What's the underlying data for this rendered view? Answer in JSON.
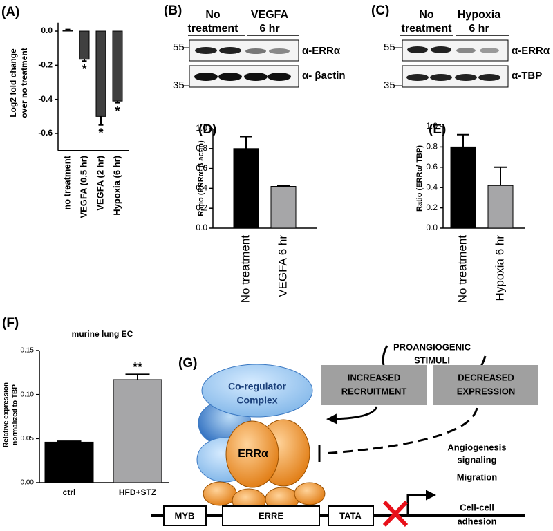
{
  "chart_data": [
    {
      "type": "bar",
      "label": "(A)",
      "y_label": [
        "Log2 fold change",
        "over no treatment"
      ],
      "categories": [
        "no treatment",
        "VEGFA (0.5 hr)",
        "VEGFA (2 hr)",
        "Hypoxia (6 hr)"
      ],
      "values": [
        0.005,
        -0.165,
        -0.5,
        -0.41
      ],
      "errors": [
        0.005,
        0.01,
        0.05,
        0.01
      ],
      "colors": [
        "#404040",
        "#404040",
        "#404040",
        "#404040"
      ],
      "annotations": [
        null,
        "*",
        "*",
        "*"
      ],
      "ylim": [
        -0.7,
        0.05
      ],
      "yticks": [
        {
          "value": 0,
          "label": "0.0"
        },
        -0.2,
        -0.4,
        -0.6
      ]
    },
    {
      "type": "bar",
      "label": "(D)",
      "y_label": [
        "Ratio  (ERRα/ β actin)"
      ],
      "categories": [
        "No treatment",
        "VEGFA 6 hr"
      ],
      "values": [
        0.8,
        0.42
      ],
      "errors": [
        0.12,
        0.01
      ],
      "colors": [
        "#000000",
        "#a6a6a8"
      ],
      "ylim": [
        0,
        1
      ],
      "yticks": [
        {
          "value": 0,
          "label": "0.0"
        },
        0.2,
        0.4,
        0.6,
        0.8,
        {
          "value": 1,
          "label": "1.0"
        }
      ]
    },
    {
      "type": "bar",
      "label": "(E)",
      "y_label": [
        "Ratio  (ERRα/ TBP)"
      ],
      "categories": [
        "No treatment",
        "Hypoxia 6 hr"
      ],
      "values": [
        0.8,
        0.42
      ],
      "errors": [
        0.12,
        0.18
      ],
      "colors": [
        "#000000",
        "#a6a6a8"
      ],
      "ylim": [
        0,
        1
      ],
      "yticks": [
        {
          "value": 0,
          "label": "0.0"
        },
        0.2,
        0.4,
        0.6,
        0.8,
        {
          "value": 1,
          "label": "1.0"
        }
      ]
    },
    {
      "type": "bar",
      "label": "(F)",
      "title": "murine lung EC",
      "y_label": [
        "Relative expression",
        "normalized to TBP"
      ],
      "categories": [
        "ctrl",
        "HFD+STZ"
      ],
      "values": [
        0.046,
        0.117
      ],
      "errors": [
        0.001,
        0.006
      ],
      "colors": [
        "#000000",
        "#a6a6a8"
      ],
      "annotations": [
        null,
        "**"
      ],
      "ylim": [
        0,
        0.15
      ],
      "yticks": [
        {
          "value": 0,
          "label": "0.00"
        },
        0.05,
        {
          "value": 0.1,
          "label": "0.10"
        },
        0.15
      ]
    }
  ],
  "blots": [
    {
      "label": "(B)",
      "groups": [
        [
          "No",
          "treatment"
        ],
        [
          "VEGFA",
          "6 hr"
        ]
      ],
      "markers": [
        55,
        35
      ],
      "antibodies": [
        "α-ERRα",
        "α- βactin"
      ]
    },
    {
      "label": "(C)",
      "groups": [
        [
          "No",
          "treatment"
        ],
        [
          "Hypoxia",
          "6 hr"
        ]
      ],
      "markers": [
        55,
        35
      ],
      "antibodies": [
        "α-ERRα",
        "α-TBP"
      ]
    }
  ],
  "diagram": {
    "label": "(G)",
    "stimuli": [
      "PROANGIOGENIC",
      "STIMULI"
    ],
    "boxes": [
      [
        "INCREASED",
        "RECRUITMENT"
      ],
      [
        "DECREASED",
        "EXPRESSION"
      ]
    ],
    "coregulator": [
      "Co-regulator",
      "Complex"
    ],
    "receptor": "ERRα",
    "elements": [
      "MYB",
      "ERRE",
      "TATA"
    ],
    "outcomes": [
      [
        "Angiogenesis",
        "signaling"
      ],
      [
        "Migration"
      ],
      [
        "Cell-cell",
        "adhesion"
      ]
    ]
  }
}
